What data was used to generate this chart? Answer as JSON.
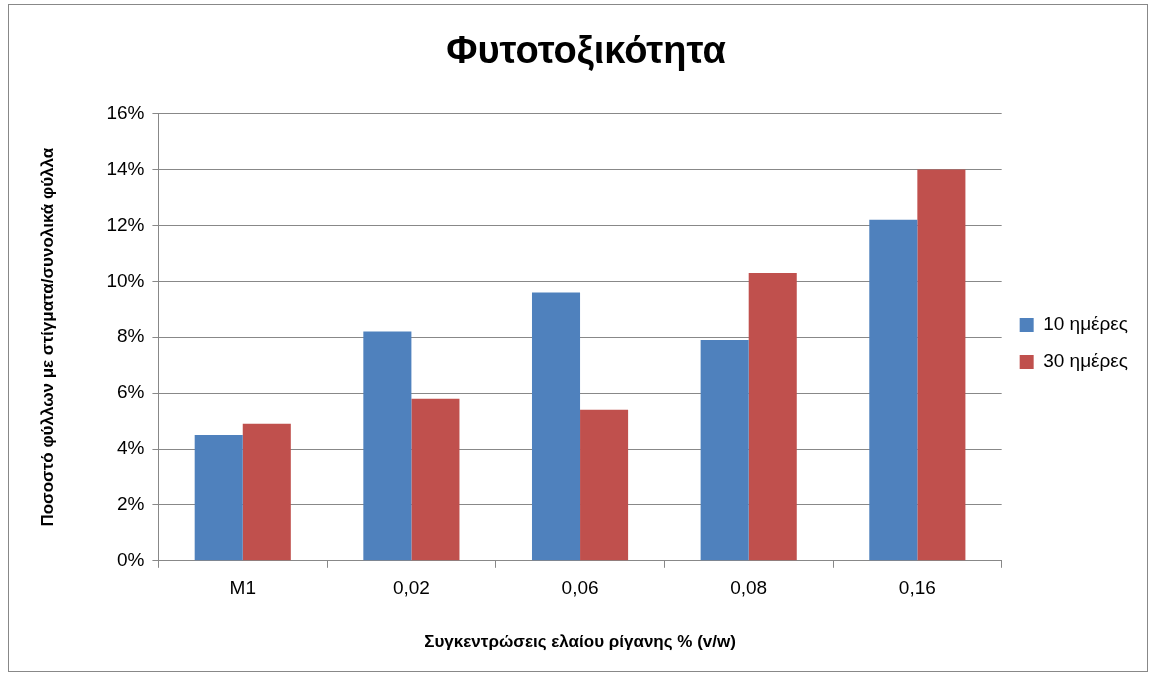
{
  "chart_data": {
    "type": "bar",
    "title": "Φυτοτοξικότητα",
    "xlabel": "Συγκεντρώσεις ελαίου ρίγανης % (v/w)",
    "ylabel": "Ποσοστό φύλλων με στίγματα/συνολικά φύλλα",
    "categories": [
      "M1",
      "0,02",
      "0,06",
      "0,08",
      "0,16"
    ],
    "series": [
      {
        "name": "10 ημέρες",
        "color": "#4f81bd",
        "values": [
          4.5,
          8.2,
          9.6,
          7.9,
          12.2
        ]
      },
      {
        "name": "30 ημέρες",
        "color": "#c0504d",
        "values": [
          4.9,
          5.8,
          5.4,
          10.3,
          14.0
        ]
      }
    ],
    "ylim": [
      0,
      16
    ],
    "yticks": [
      {
        "value": 0,
        "label": "0%"
      },
      {
        "value": 2,
        "label": "2%"
      },
      {
        "value": 4,
        "label": "4%"
      },
      {
        "value": 6,
        "label": "6%"
      },
      {
        "value": 8,
        "label": "8%"
      },
      {
        "value": 10,
        "label": "10%"
      },
      {
        "value": 12,
        "label": "12%"
      },
      {
        "value": 14,
        "label": "14%"
      },
      {
        "value": 16,
        "label": "16%"
      }
    ],
    "grid": "y",
    "legend": "right"
  }
}
